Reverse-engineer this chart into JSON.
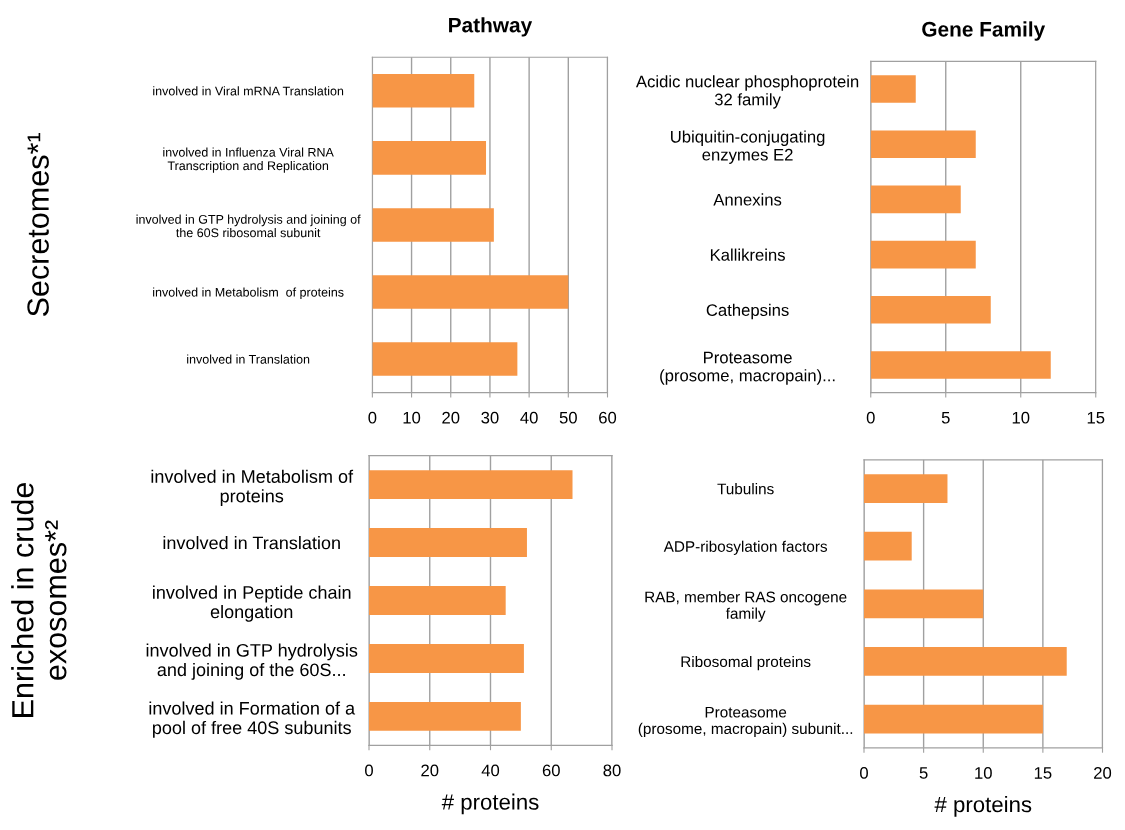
{
  "chart_data": [
    {
      "type": "bar",
      "orientation": "horizontal",
      "title": "Pathway",
      "ylabel": "Secretomes*¹",
      "categories": [
        "involved in Viral mRNA Translation",
        "involved in Influenza Viral RNA\nTranscription and Replication",
        "involved in GTP hydrolysis and joining of\nthe 60S ribosomal subunit",
        "involved in Metabolism  of proteins",
        "involved in Translation"
      ],
      "values": [
        26,
        29,
        31,
        50,
        37
      ],
      "color": "#f79646",
      "xlim": [
        0,
        60
      ],
      "xticks": [
        0,
        10,
        20,
        30,
        40,
        50,
        60
      ],
      "grid": "x"
    },
    {
      "type": "bar",
      "orientation": "horizontal",
      "title": "Gene Family",
      "categories": [
        "Acidic nuclear phosphoprotein\n32 family",
        "Ubiquitin-conjugating\nenzymes E2",
        "Annexins",
        "Kallikreins",
        "Cathepsins",
        "Proteasome\n(prosome, macropain)..."
      ],
      "values": [
        3,
        7,
        6,
        7,
        8,
        12
      ],
      "color": "#f79646",
      "xlim": [
        0,
        15
      ],
      "xticks": [
        0,
        5,
        10,
        15
      ],
      "grid": "x"
    },
    {
      "type": "bar",
      "orientation": "horizontal",
      "ylabel": "Enriched in crude\nexosomes*²",
      "xlabel": "# proteins",
      "categories": [
        "involved in Metabolism of\nproteins",
        "involved in Translation",
        "involved in Peptide chain\nelongation",
        "involved in GTP hydrolysis\nand joining of the 60S...",
        "involved in Formation of a\npool of free 40S subunits"
      ],
      "values": [
        67,
        52,
        45,
        51,
        50
      ],
      "color": "#f79646",
      "xlim": [
        0,
        80
      ],
      "xticks": [
        0,
        20,
        40,
        60,
        80
      ],
      "grid": "x"
    },
    {
      "type": "bar",
      "orientation": "horizontal",
      "xlabel": "# proteins",
      "categories": [
        "Tubulins",
        "ADP-ribosylation factors",
        "RAB, member RAS oncogene\nfamily",
        "Ribosomal proteins",
        "Proteasome\n(prosome, macropain) subunit..."
      ],
      "values": [
        7,
        4,
        10,
        17,
        15
      ],
      "color": "#f79646",
      "xlim": [
        0,
        20
      ],
      "xticks": [
        0,
        5,
        10,
        15,
        20
      ],
      "grid": "x"
    }
  ]
}
